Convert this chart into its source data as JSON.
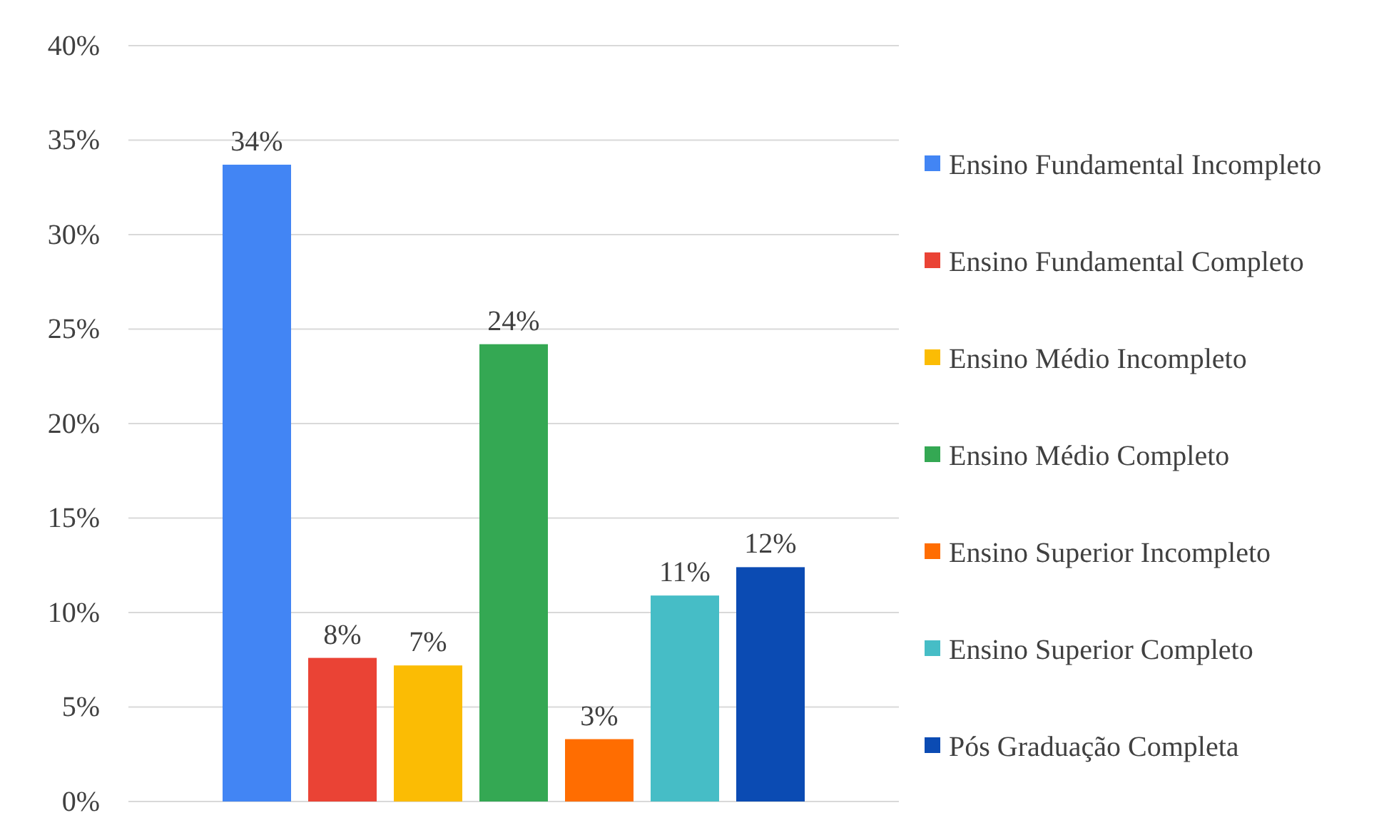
{
  "chart_data": {
    "type": "bar",
    "categories": [
      null
    ],
    "series": [
      {
        "name": "Ensino Fundamental Incompleto",
        "color": "#4285f4",
        "values": [
          33.7
        ],
        "value_labels": [
          "34%"
        ]
      },
      {
        "name": "Ensino Fundamental Completo",
        "color": "#ea4335",
        "values": [
          7.6
        ],
        "value_labels": [
          "8%"
        ]
      },
      {
        "name": "Ensino Médio Incompleto",
        "color": "#fbbc04",
        "values": [
          7.2
        ],
        "value_labels": [
          "7%"
        ]
      },
      {
        "name": "Ensino Médio Completo",
        "color": "#34a853",
        "values": [
          24.2
        ],
        "value_labels": [
          "24%"
        ]
      },
      {
        "name": "Ensino Superior Incompleto",
        "color": "#ff6d01",
        "values": [
          3.3
        ],
        "value_labels": [
          "3%"
        ]
      },
      {
        "name": "Ensino Superior Completo",
        "color": "#46bdc6",
        "values": [
          10.9
        ],
        "value_labels": [
          "11%"
        ]
      },
      {
        "name": "Pós Graduação Completa",
        "color": "#0b4bb3",
        "values": [
          12.4
        ],
        "value_labels": [
          "12%"
        ]
      }
    ],
    "ylim": [
      0,
      40
    ],
    "yticks": [
      {
        "value": 0,
        "label": "0%"
      },
      {
        "value": 5,
        "label": "5%"
      },
      {
        "value": 10,
        "label": "10%"
      },
      {
        "value": 15,
        "label": "15%"
      },
      {
        "value": 20,
        "label": "20%"
      },
      {
        "value": 25,
        "label": "25%"
      },
      {
        "value": 30,
        "label": "30%"
      },
      {
        "value": 35,
        "label": "35%"
      },
      {
        "value": 40,
        "label": "40%"
      }
    ],
    "grid": "y",
    "legend": "right"
  }
}
